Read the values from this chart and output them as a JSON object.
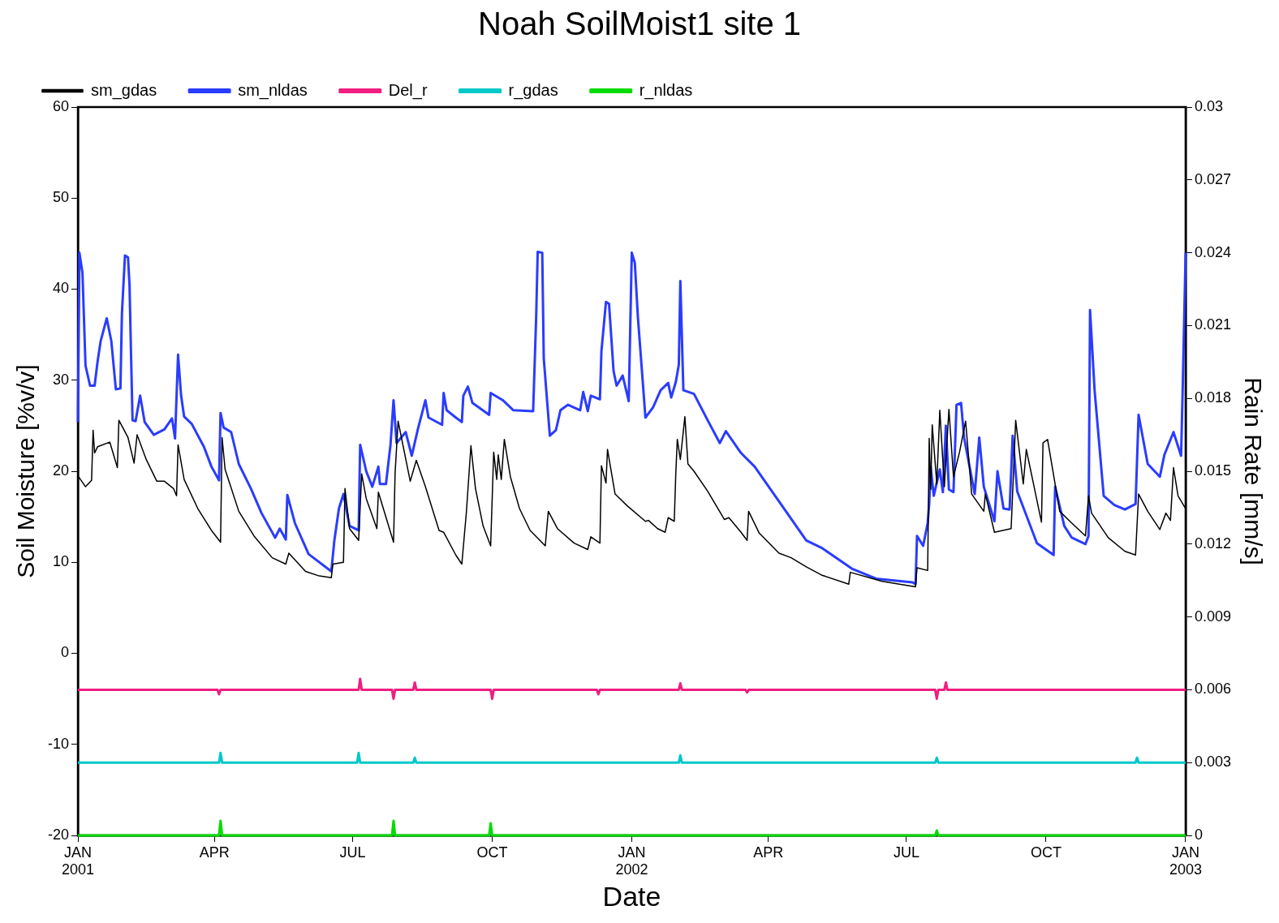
{
  "chart_data": {
    "type": "line",
    "title": "Noah SoilMoist1 site 1",
    "xlabel": "Date",
    "ylabel": "Soil Moisture [%v/v]",
    "y2label": "Rain Rate [mm/s]",
    "xlim": [
      "2001-01-01",
      "2003-01-01"
    ],
    "xticks": [
      {
        "value": "2001-01-01",
        "label": "JAN 2001"
      },
      {
        "value": "2001-04-01",
        "label": "APR"
      },
      {
        "value": "2001-07-01",
        "label": "JUL"
      },
      {
        "value": "2001-10-01",
        "label": "OCT"
      },
      {
        "value": "2002-01-01",
        "label": "JAN 2002"
      },
      {
        "value": "2002-04-01",
        "label": "APR"
      },
      {
        "value": "2002-07-01",
        "label": "JUL"
      },
      {
        "value": "2002-10-01",
        "label": "OCT"
      },
      {
        "value": "2003-01-01",
        "label": "JAN 2003"
      }
    ],
    "ylim": [
      -20,
      60
    ],
    "yticks": [
      -20,
      -10,
      0,
      10,
      20,
      30,
      40,
      50,
      60
    ],
    "y2lim": [
      0,
      0.03
    ],
    "y2ticks": [
      0,
      0.003,
      0.006,
      0.009,
      0.012,
      0.015,
      0.018,
      0.021,
      0.024,
      0.027,
      0.03
    ],
    "legend": "top",
    "grid": false,
    "series": [
      {
        "name": "sm_gdas",
        "color": "#000000",
        "x": [
          "2001-01-01",
          "2001-01-06",
          "2001-01-10",
          "2001-01-11",
          "2001-01-12",
          "2001-01-14",
          "2001-01-22",
          "2001-01-27",
          "2001-01-28",
          "2001-02-03",
          "2001-02-07",
          "2001-02-09",
          "2001-02-15",
          "2001-02-22",
          "2001-02-27",
          "2001-03-05",
          "2001-03-07",
          "2001-03-08",
          "2001-03-12",
          "2001-03-21",
          "2001-03-30",
          "2001-04-05",
          "2001-04-06",
          "2001-04-08",
          "2001-04-17",
          "2001-04-27",
          "2001-05-09",
          "2001-05-18",
          "2001-05-20",
          "2001-05-31",
          "2001-06-09",
          "2001-06-17",
          "2001-06-18",
          "2001-06-25",
          "2001-06-26",
          "2001-06-29",
          "2001-07-05",
          "2001-07-07",
          "2001-07-10",
          "2001-07-17",
          "2001-07-18",
          "2001-07-28",
          "2001-07-29",
          "2001-07-31",
          "2001-08-08",
          "2001-08-12",
          "2001-08-18",
          "2001-08-27",
          "2001-08-30",
          "2001-09-07",
          "2001-09-11",
          "2001-09-14",
          "2001-09-17",
          "2001-09-20",
          "2001-09-25",
          "2001-09-30",
          "2001-10-02",
          "2001-10-04",
          "2001-10-05",
          "2001-10-07",
          "2001-10-09",
          "2001-10-13",
          "2001-10-19",
          "2001-10-26",
          "2001-11-05",
          "2001-11-07",
          "2001-11-13",
          "2001-11-24",
          "2001-12-03",
          "2001-12-05",
          "2001-12-11",
          "2001-12-12",
          "2001-12-15",
          "2001-12-16",
          "2001-12-21",
          "2001-12-29",
          "2002-01-10",
          "2002-01-12",
          "2002-01-18",
          "2002-01-23",
          "2002-01-25",
          "2002-01-29",
          "2002-01-30",
          "2002-01-31",
          "2002-02-02",
          "2002-02-05",
          "2002-02-07",
          "2002-02-11",
          "2002-02-20",
          "2002-03-03",
          "2002-03-06",
          "2002-03-14",
          "2002-03-18",
          "2002-03-19",
          "2002-03-26",
          "2002-04-08",
          "2002-04-16",
          "2002-04-26",
          "2002-05-06",
          "2002-05-24",
          "2002-05-25",
          "2002-06-15",
          "2002-07-07",
          "2002-07-08",
          "2002-07-15",
          "2002-07-16",
          "2002-07-17",
          "2002-07-18",
          "2002-07-21",
          "2002-07-23",
          "2002-07-26",
          "2002-07-29",
          "2002-08-01",
          "2002-08-05",
          "2002-08-09",
          "2002-08-13",
          "2002-08-21",
          "2002-08-22",
          "2002-08-28",
          "2002-09-08",
          "2002-09-11",
          "2002-09-16",
          "2002-09-18",
          "2002-09-28",
          "2002-09-29",
          "2002-10-02",
          "2002-10-10",
          "2002-10-18",
          "2002-10-27",
          "2002-10-29",
          "2002-10-31",
          "2002-11-11",
          "2002-11-22",
          "2002-11-29",
          "2002-12-01",
          "2002-12-07",
          "2002-12-15",
          "2002-12-19",
          "2002-12-22",
          "2002-12-24",
          "2002-12-27",
          "2003-01-01"
        ],
        "values": [
          19.5,
          18.3,
          19.0,
          24.5,
          22.0,
          22.7,
          23.2,
          20.4,
          25.6,
          23.7,
          20.9,
          24.0,
          21.3,
          18.9,
          18.9,
          18.1,
          17.3,
          22.9,
          19.1,
          15.9,
          13.5,
          12.2,
          23.7,
          20.2,
          15.6,
          12.9,
          10.5,
          9.8,
          11.0,
          9.0,
          8.5,
          8.3,
          9.8,
          10.0,
          18.1,
          13.7,
          12.4,
          19.7,
          17.0,
          13.7,
          17.7,
          12.2,
          19.7,
          25.5,
          18.9,
          21.2,
          18.3,
          13.5,
          13.3,
          10.8,
          9.8,
          15.5,
          22.8,
          18.1,
          14.0,
          11.8,
          22.1,
          19.1,
          21.8,
          19.1,
          23.5,
          19.4,
          15.9,
          13.5,
          11.8,
          15.6,
          13.7,
          12.1,
          11.4,
          12.8,
          12.1,
          20.6,
          18.7,
          22.4,
          17.5,
          16.2,
          14.5,
          14.6,
          13.7,
          13.3,
          14.9,
          14.5,
          19.7,
          23.5,
          21.3,
          26.0,
          20.8,
          20.0,
          17.8,
          14.7,
          14.9,
          13.3,
          12.4,
          15.6,
          13.2,
          11.0,
          10.5,
          9.5,
          8.6,
          7.6,
          8.9,
          7.9,
          7.3,
          9.4,
          9.1,
          23.6,
          18.0,
          25.1,
          18.6,
          26.7,
          18.3,
          26.8,
          19.4,
          22.1,
          25.5,
          17.5,
          15.6,
          17.5,
          13.3,
          13.7,
          25.6,
          18.6,
          22.4,
          14.4,
          23.1,
          23.5,
          15.6,
          14.3,
          12.9,
          17.3,
          15.4,
          12.7,
          11.2,
          10.8,
          17.5,
          15.6,
          13.6,
          15.4,
          14.6,
          20.4,
          17.3,
          15.9
        ]
      },
      {
        "name": "sm_nldas",
        "color": "#2a3cff",
        "x": [
          "2001-01-01",
          "2001-01-02",
          "2001-01-04",
          "2001-01-06",
          "2001-01-09",
          "2001-01-12",
          "2001-01-14",
          "2001-01-16",
          "2001-01-20",
          "2001-01-23",
          "2001-01-26",
          "2001-01-29",
          "2001-01-30",
          "2001-02-01",
          "2001-02-03",
          "2001-02-04",
          "2001-02-05",
          "2001-02-06",
          "2001-02-08",
          "2001-02-11",
          "2001-02-14",
          "2001-02-20",
          "2001-02-27",
          "2001-03-04",
          "2001-03-06",
          "2001-03-08",
          "2001-03-10",
          "2001-03-12",
          "2001-03-17",
          "2001-03-25",
          "2001-03-30",
          "2001-04-04",
          "2001-04-05",
          "2001-04-07",
          "2001-04-12",
          "2001-04-17",
          "2001-04-25",
          "2001-05-02",
          "2001-05-11",
          "2001-05-14",
          "2001-05-18",
          "2001-05-19",
          "2001-05-24",
          "2001-06-02",
          "2001-06-17",
          "2001-06-19",
          "2001-06-22",
          "2001-06-25",
          "2001-06-29",
          "2001-07-05",
          "2001-07-06",
          "2001-07-10",
          "2001-07-14",
          "2001-07-18",
          "2001-07-19",
          "2001-07-23",
          "2001-07-26",
          "2001-07-28",
          "2001-07-30",
          "2001-08-05",
          "2001-08-09",
          "2001-08-13",
          "2001-08-18",
          "2001-08-20",
          "2001-08-29",
          "2001-08-30",
          "2001-09-01",
          "2001-09-07",
          "2001-09-11",
          "2001-09-12",
          "2001-09-15",
          "2001-09-18",
          "2001-09-29",
          "2001-09-30",
          "2001-10-08",
          "2001-10-15",
          "2001-10-28",
          "2001-10-30",
          "2001-10-31",
          "2001-11-03",
          "2001-11-04",
          "2001-11-08",
          "2001-11-12",
          "2001-11-15",
          "2001-11-20",
          "2001-11-28",
          "2001-11-30",
          "2001-12-03",
          "2001-12-05",
          "2001-12-11",
          "2001-12-12",
          "2001-12-15",
          "2001-12-17",
          "2001-12-20",
          "2001-12-22",
          "2001-12-26",
          "2001-12-30",
          "2002-01-01",
          "2002-01-03",
          "2002-01-05",
          "2002-01-10",
          "2002-01-15",
          "2002-01-20",
          "2002-01-25",
          "2002-01-27",
          "2002-01-30",
          "2002-02-01",
          "2002-02-02",
          "2002-02-04",
          "2002-02-11",
          "2002-02-20",
          "2002-02-28",
          "2002-03-04",
          "2002-03-14",
          "2002-03-23",
          "2002-04-08",
          "2002-04-26",
          "2002-05-06",
          "2002-05-26",
          "2002-06-11",
          "2002-07-05",
          "2002-07-07",
          "2002-07-08",
          "2002-07-12",
          "2002-07-15",
          "2002-07-16",
          "2002-07-17",
          "2002-07-19",
          "2002-07-23",
          "2002-07-25",
          "2002-07-27",
          "2002-07-29",
          "2002-08-01",
          "2002-08-03",
          "2002-08-06",
          "2002-08-08",
          "2002-08-15",
          "2002-08-18",
          "2002-08-21",
          "2002-08-28",
          "2002-08-30",
          "2002-09-03",
          "2002-09-07",
          "2002-09-09",
          "2002-09-12",
          "2002-09-25",
          "2002-10-06",
          "2002-10-07",
          "2002-10-13",
          "2002-10-18",
          "2002-10-27",
          "2002-10-29",
          "2002-10-30",
          "2002-11-02",
          "2002-11-08",
          "2002-11-15",
          "2002-11-22",
          "2002-11-29",
          "2002-12-01",
          "2002-12-07",
          "2002-12-15",
          "2002-12-18",
          "2002-12-24",
          "2002-12-29",
          "2002-12-30",
          "2003-01-01"
        ],
        "values": [
          25.4,
          44.0,
          41.8,
          31.6,
          29.4,
          29.4,
          32.1,
          34.3,
          36.8,
          34.3,
          29.0,
          29.1,
          37.3,
          43.7,
          43.5,
          40.5,
          32.9,
          25.6,
          25.5,
          28.3,
          25.4,
          24.0,
          24.6,
          25.8,
          23.6,
          32.8,
          28.3,
          26.0,
          25.2,
          22.7,
          20.5,
          19.0,
          26.4,
          24.8,
          24.3,
          20.8,
          18.1,
          15.4,
          12.7,
          13.7,
          12.5,
          17.4,
          14.3,
          10.9,
          9.0,
          12.4,
          15.9,
          17.5,
          14.0,
          13.5,
          22.9,
          20.0,
          18.3,
          20.5,
          18.6,
          18.6,
          22.9,
          27.8,
          23.1,
          24.3,
          21.7,
          24.6,
          27.8,
          25.9,
          25.1,
          28.6,
          26.7,
          25.9,
          25.4,
          28.3,
          29.3,
          27.5,
          26.2,
          28.6,
          27.8,
          26.7,
          26.6,
          37.0,
          44.1,
          44.0,
          32.4,
          23.9,
          24.5,
          26.7,
          27.3,
          26.7,
          28.7,
          26.6,
          28.3,
          27.9,
          33.2,
          38.6,
          38.4,
          31.0,
          29.4,
          30.5,
          27.7,
          44.0,
          42.9,
          37.0,
          25.9,
          27.0,
          28.9,
          29.7,
          28.1,
          29.8,
          31.7,
          40.9,
          28.9,
          28.5,
          25.6,
          23.1,
          24.4,
          22.0,
          20.5,
          16.7,
          12.4,
          11.6,
          9.3,
          8.2,
          7.8,
          7.6,
          12.9,
          11.8,
          14.3,
          16.4,
          20.5,
          17.3,
          20.2,
          17.7,
          25.0,
          18.0,
          17.7,
          27.3,
          27.5,
          23.7,
          17.5,
          23.7,
          18.3,
          14.5,
          20.0,
          15.9,
          15.8,
          23.9,
          17.8,
          12.1,
          10.8,
          18.3,
          14.0,
          12.7,
          12.0,
          12.9,
          37.7,
          28.9,
          17.3,
          16.3,
          15.8,
          16.4,
          26.2,
          20.8,
          19.4,
          21.8,
          24.3,
          21.7,
          28.6,
          44.0
        ]
      },
      {
        "name": "Del_r",
        "color": "#f01e80",
        "x": [
          "2001-01-01",
          "2001-04-03",
          "2001-04-04",
          "2001-04-05",
          "2001-07-05",
          "2001-07-06",
          "2001-07-07",
          "2001-07-27",
          "2001-07-28",
          "2001-07-29",
          "2001-08-10",
          "2001-08-11",
          "2001-08-12",
          "2001-09-30",
          "2001-10-01",
          "2001-10-02",
          "2001-12-09",
          "2001-12-10",
          "2001-12-11",
          "2002-02-01",
          "2002-02-02",
          "2002-02-03",
          "2002-03-17",
          "2002-03-18",
          "2002-03-19",
          "2002-07-20",
          "2002-07-21",
          "2002-07-22",
          "2002-07-26",
          "2002-07-27",
          "2002-07-28",
          "2003-01-01"
        ],
        "values": [
          -4.0,
          -4.0,
          -4.5,
          -4.0,
          -4.0,
          -2.8,
          -4.0,
          -4.0,
          -5.0,
          -4.0,
          -4.0,
          -3.2,
          -4.0,
          -4.0,
          -5.0,
          -4.0,
          -4.0,
          -4.5,
          -4.0,
          -4.0,
          -3.3,
          -4.0,
          -4.0,
          -4.3,
          -4.0,
          -4.0,
          -5.0,
          -4.0,
          -4.0,
          -3.2,
          -4.0,
          -4.0
        ]
      },
      {
        "name": "r_gdas",
        "color": "#00c8c8",
        "axis": "y2",
        "x": [
          "2001-01-01",
          "2001-04-04",
          "2001-04-05",
          "2001-04-06",
          "2001-07-04",
          "2001-07-05",
          "2001-07-06",
          "2001-08-10",
          "2001-08-11",
          "2001-08-12",
          "2002-02-01",
          "2002-02-02",
          "2002-02-03",
          "2002-07-20",
          "2002-07-21",
          "2002-07-22",
          "2002-11-29",
          "2002-11-30",
          "2002-12-01",
          "2003-01-01"
        ],
        "values": [
          0.003,
          0.003,
          0.0034,
          0.003,
          0.003,
          0.0034,
          0.003,
          0.003,
          0.0032,
          0.003,
          0.003,
          0.0033,
          0.003,
          0.003,
          0.0032,
          0.003,
          0.003,
          0.0032,
          0.003,
          0.003
        ]
      },
      {
        "name": "r_nldas",
        "color": "#00dc00",
        "axis": "y2",
        "x": [
          "2001-01-01",
          "2001-04-04",
          "2001-04-05",
          "2001-04-06",
          "2001-07-27",
          "2001-07-28",
          "2001-07-29",
          "2001-09-29",
          "2001-09-30",
          "2001-10-01",
          "2002-07-20",
          "2002-07-21",
          "2002-07-22",
          "2003-01-01"
        ],
        "values": [
          0,
          0,
          0.0006,
          0,
          0,
          0.0006,
          0,
          0,
          0.0005,
          0,
          0,
          0.0002,
          0,
          0
        ]
      }
    ]
  }
}
